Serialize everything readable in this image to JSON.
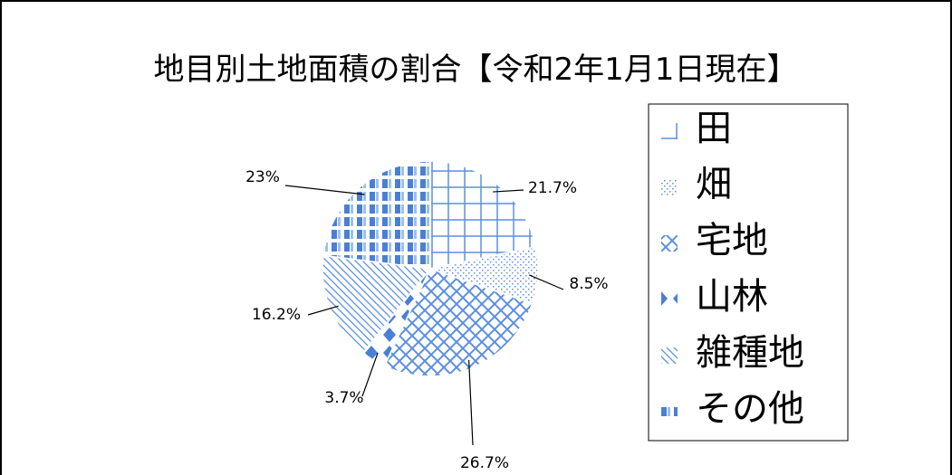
{
  "chart_data": {
    "type": "pie",
    "title": "地目別土地面積の割合【令和2年1月1日現在】",
    "categories": [
      "田",
      "畑",
      "宅地",
      "山林",
      "雑種地",
      "その他"
    ],
    "values": [
      21.7,
      8.5,
      26.7,
      3.7,
      16.2,
      23
    ],
    "value_labels": [
      "21.7%",
      "8.5%",
      "26.7%",
      "3.7%",
      "16.2%",
      "23%"
    ],
    "colors": [
      "#5b8fe0",
      "#5b8fe0",
      "#5b8fe0",
      "#4a7fd4",
      "#5b8fe0",
      "#4a7fd4"
    ],
    "legend": "right"
  }
}
